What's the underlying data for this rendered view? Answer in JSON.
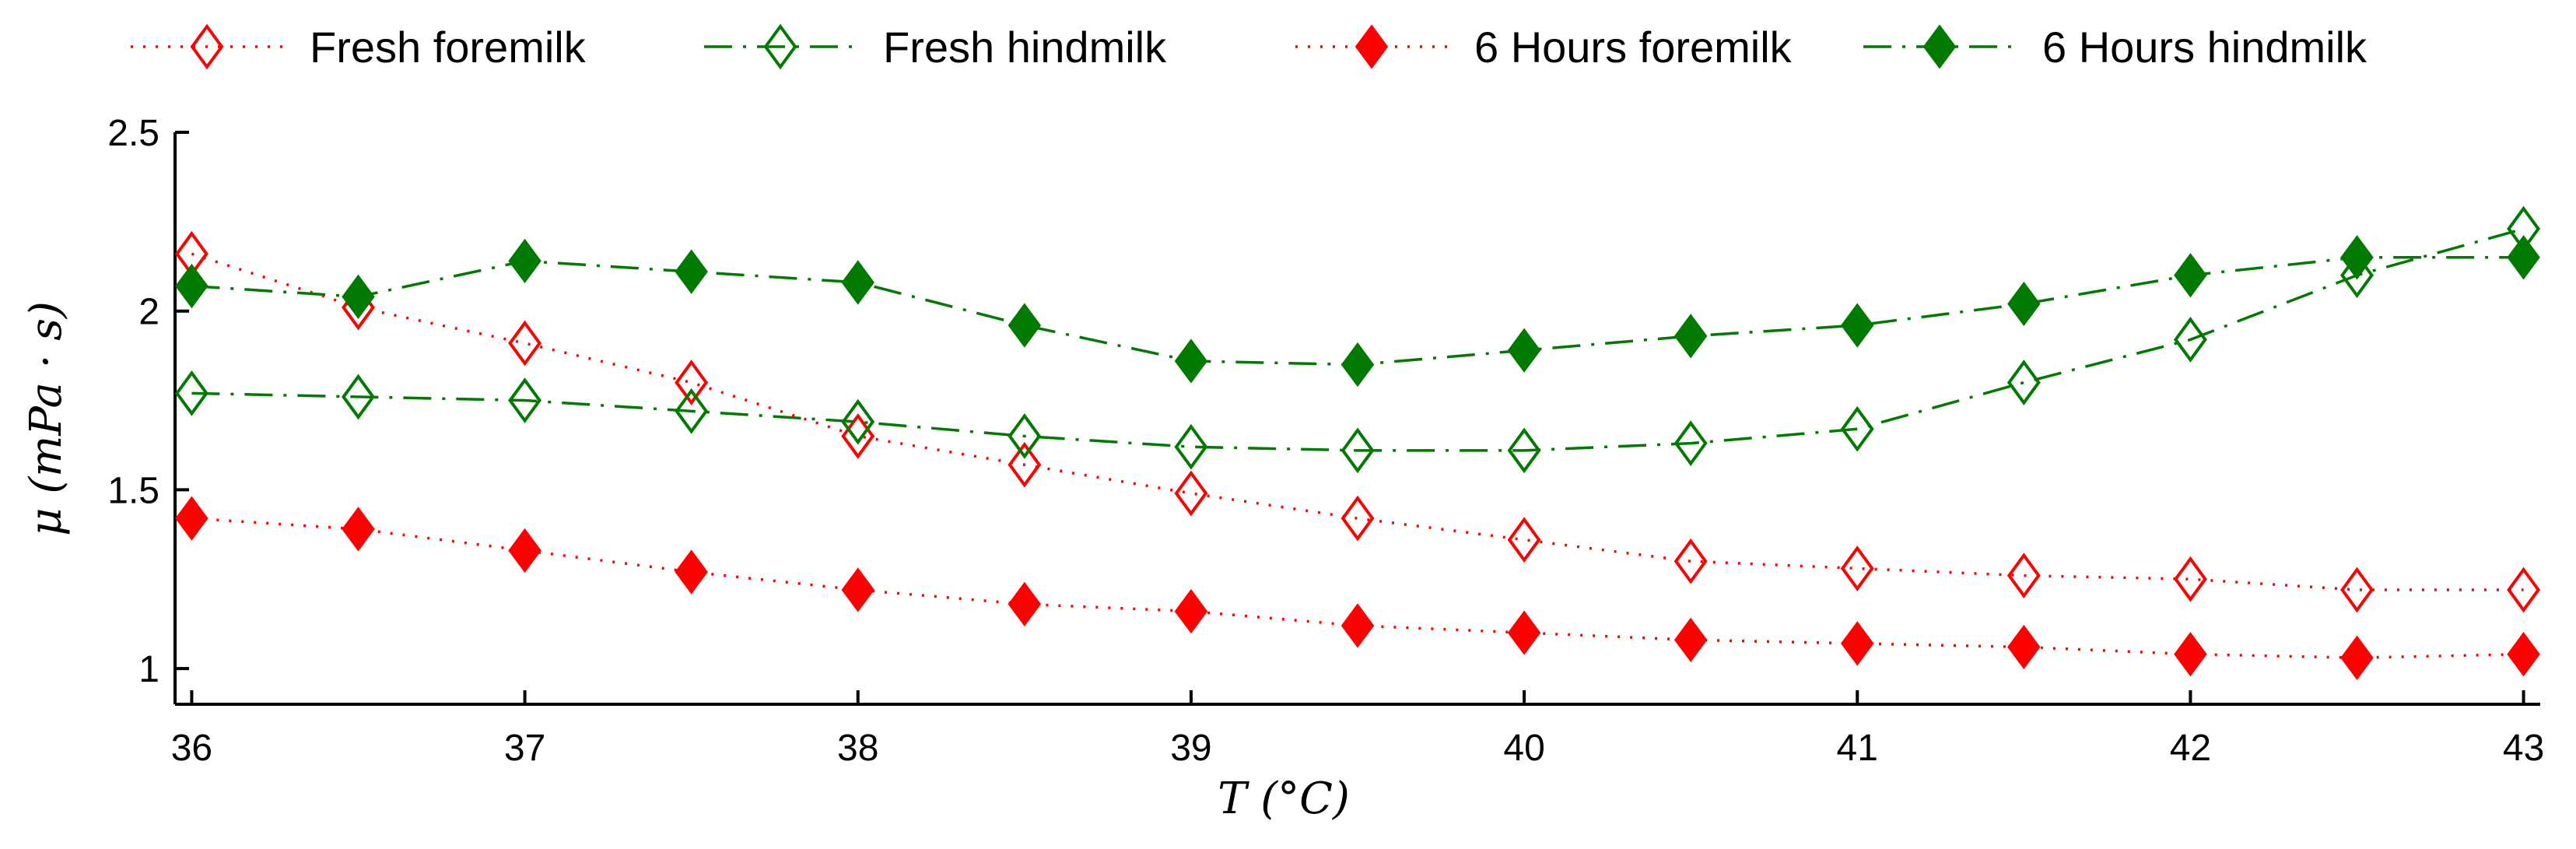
{
  "chart_data": {
    "type": "line",
    "title": "",
    "xlabel": "T (°C)",
    "ylabel": "μ (mPa · s)",
    "xlim": [
      35.95,
      43.05
    ],
    "ylim": [
      0.9,
      2.5
    ],
    "xticks": [
      "36",
      "37",
      "38",
      "39",
      "40",
      "41",
      "42",
      "43"
    ],
    "yticks": [
      "1",
      "1.5",
      "2",
      "2.5"
    ],
    "legend_position": "top",
    "x": [
      36,
      36.5,
      37,
      37.5,
      38,
      38.5,
      39,
      39.5,
      40,
      40.5,
      41,
      41.5,
      42,
      42.5,
      43
    ],
    "series": [
      {
        "name": "Fresh foremilk",
        "color": "#ff0000",
        "marker": "open-diamond",
        "line_style": "dotted",
        "values": [
          2.16,
          2.01,
          1.91,
          1.8,
          1.65,
          1.57,
          1.49,
          1.42,
          1.36,
          1.3,
          1.28,
          1.26,
          1.25,
          1.22,
          1.22
        ]
      },
      {
        "name": "Fresh hindmilk",
        "color": "#007a00",
        "marker": "open-diamond",
        "line_style": "dash-dot",
        "values": [
          1.77,
          1.76,
          1.75,
          1.72,
          1.69,
          1.65,
          1.62,
          1.61,
          1.61,
          1.63,
          1.67,
          1.8,
          1.92,
          2.1,
          2.23
        ]
      },
      {
        "name": "6 Hours foremilk",
        "color": "#ff0000",
        "marker": "filled-diamond",
        "line_style": "dotted",
        "values": [
          1.42,
          1.39,
          1.33,
          1.27,
          1.22,
          1.18,
          1.16,
          1.12,
          1.1,
          1.08,
          1.07,
          1.06,
          1.04,
          1.03,
          1.04
        ]
      },
      {
        "name": "6 Hours hindmilk",
        "color": "#007a00",
        "marker": "filled-diamond",
        "line_style": "dash-dot",
        "values": [
          2.07,
          2.04,
          2.14,
          2.11,
          2.08,
          1.96,
          1.86,
          1.85,
          1.89,
          1.93,
          1.96,
          2.02,
          2.1,
          2.15,
          2.15
        ]
      }
    ]
  }
}
